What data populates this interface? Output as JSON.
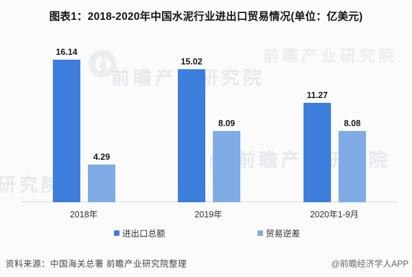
{
  "title": "图表1：2018-2020年中国水泥行业进出口贸易情况(单位：亿美元)",
  "chart_data": {
    "type": "bar",
    "title": "图表1：2018-2020年中国水泥行业进出口贸易情况(单位：亿美元)",
    "unit": "亿美元",
    "categories": [
      "2018年",
      "2019年",
      "2020年1-9月"
    ],
    "series": [
      {
        "name": "进出口总额",
        "color": "#3d7edc",
        "values": [
          16.14,
          15.02,
          11.27
        ]
      },
      {
        "name": "贸易逆差",
        "color": "#7face4",
        "values": [
          4.29,
          8.09,
          8.08
        ]
      }
    ],
    "value_labels_shown": true,
    "y_axis_visible": false,
    "ylim": [
      0,
      16.5
    ],
    "grid": false,
    "legend_position": "bottom"
  },
  "footer": {
    "source": "资料来源：中国海关总署 前瞻产业研究院整理",
    "credit": "@前瞻经济学人APP"
  },
  "watermark": {
    "text": "前瞻产业研究院",
    "logo": "qianzhan-logo"
  },
  "colors": {
    "background": "#fbfbfb",
    "bar_primary": "#3d7edc",
    "bar_secondary": "#7face4",
    "axis_line": "#d8d8d8",
    "title_text": "#141414",
    "label_text": "#333333",
    "footer_source_text": "#454545",
    "footer_credit_text": "#6b6b6b"
  }
}
